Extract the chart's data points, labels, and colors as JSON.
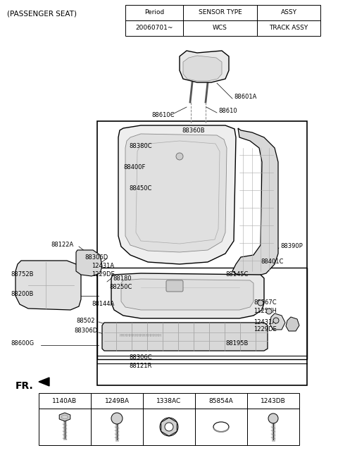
{
  "title": "(PASSENGER SEAT)",
  "table_headers": [
    "Period",
    "SENSOR TYPE",
    "ASSY"
  ],
  "table_row": [
    "20060701~",
    "WCS",
    "TRACK ASSY"
  ],
  "fr_label": "FR.",
  "fastener_codes": [
    "1140AB",
    "1249BA",
    "1338AC",
    "85854A",
    "1243DB"
  ],
  "bg_color": "#ffffff"
}
